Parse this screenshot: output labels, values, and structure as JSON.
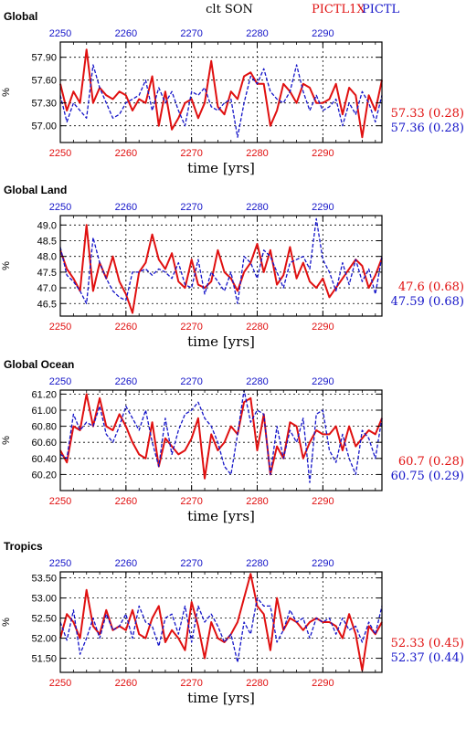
{
  "header": {
    "title": "clt SON",
    "label_exp": "PICTL1X",
    "label_ctl": "PICTL"
  },
  "colors": {
    "exp": "#e01010",
    "ctl": "#1414c8",
    "grid": "#000000",
    "text": "#000000"
  },
  "chart_data": [
    {
      "type": "line",
      "title": "Global",
      "xlabel": "time [yrs]",
      "ylabel": "%",
      "xlim": [
        2250,
        2299
      ],
      "ylim": [
        56.78,
        58.1
      ],
      "xticks": [
        2250,
        2260,
        2270,
        2280,
        2290
      ],
      "xtick_labels": [
        "2250",
        "2260",
        "2270",
        "2280",
        "2290"
      ],
      "yticks": [
        57.0,
        57.3,
        57.6,
        57.9
      ],
      "ytick_labels": [
        "57.00",
        "57.30",
        "57.60",
        "57.90"
      ],
      "grid": true,
      "series": [
        {
          "name": "PICTL1X",
          "mean_label": "57.33 (0.28)",
          "x_start": 2250,
          "values": [
            57.55,
            57.2,
            57.45,
            57.3,
            58.0,
            57.3,
            57.5,
            57.4,
            57.35,
            57.45,
            57.4,
            57.2,
            57.35,
            57.3,
            57.65,
            57.0,
            57.45,
            56.95,
            57.1,
            57.3,
            57.35,
            57.1,
            57.3,
            57.85,
            57.25,
            57.15,
            57.45,
            57.35,
            57.65,
            57.7,
            57.55,
            57.55,
            57.0,
            57.2,
            57.55,
            57.45,
            57.3,
            57.55,
            57.5,
            57.3,
            57.3,
            57.35,
            57.55,
            57.15,
            57.5,
            57.4,
            56.85,
            57.4,
            57.2,
            57.6
          ]
        },
        {
          "name": "PICTL",
          "mean_label": "57.36 (0.28)",
          "x_start": 2250,
          "values": [
            57.4,
            57.05,
            57.3,
            57.2,
            57.1,
            57.8,
            57.5,
            57.3,
            57.1,
            57.15,
            57.3,
            57.35,
            57.4,
            57.6,
            57.2,
            57.5,
            57.3,
            57.45,
            57.2,
            57.0,
            57.45,
            57.4,
            57.5,
            57.25,
            57.2,
            57.3,
            57.35,
            56.85,
            57.3,
            57.65,
            57.55,
            57.75,
            57.45,
            57.35,
            57.3,
            57.45,
            57.8,
            57.45,
            57.2,
            57.4,
            57.2,
            57.25,
            57.35,
            57.0,
            57.3,
            57.15,
            57.45,
            57.3,
            57.05,
            57.4
          ]
        }
      ]
    },
    {
      "type": "line",
      "title": "Global Land",
      "xlabel": "time [yrs]",
      "ylabel": "%",
      "xlim": [
        2250,
        2299
      ],
      "ylim": [
        46.1,
        49.3
      ],
      "xticks": [
        2250,
        2260,
        2270,
        2280,
        2290
      ],
      "xtick_labels": [
        "2250",
        "2260",
        "2270",
        "2280",
        "2290"
      ],
      "yticks": [
        46.5,
        47.0,
        47.5,
        48.0,
        48.5,
        49.0
      ],
      "ytick_labels": [
        "46.5",
        "47.0",
        "47.5",
        "48.0",
        "48.5",
        "49.0"
      ],
      "grid": true,
      "series": [
        {
          "name": "PICTL1X",
          "mean_label": "47.6 (0.68)",
          "x_start": 2250,
          "values": [
            48.2,
            47.6,
            47.3,
            46.9,
            49.0,
            46.9,
            47.8,
            47.3,
            48.0,
            47.2,
            46.8,
            46.2,
            47.5,
            47.8,
            48.7,
            47.9,
            47.6,
            48.1,
            47.2,
            47.0,
            47.9,
            47.1,
            47.0,
            47.2,
            48.2,
            47.5,
            47.3,
            46.9,
            47.5,
            47.8,
            48.4,
            47.5,
            48.2,
            47.1,
            47.4,
            48.3,
            47.3,
            47.8,
            47.2,
            47.0,
            47.3,
            46.7,
            47.0,
            47.3,
            47.6,
            47.9,
            47.7,
            47.0,
            47.4,
            47.95
          ]
        },
        {
          "name": "PICTL",
          "mean_label": "47.59 (0.68)",
          "x_start": 2250,
          "values": [
            48.3,
            47.4,
            47.2,
            46.9,
            46.5,
            48.6,
            47.8,
            47.3,
            46.9,
            46.7,
            46.6,
            47.5,
            47.5,
            47.6,
            47.4,
            47.6,
            47.5,
            47.3,
            47.8,
            47.1,
            47.0,
            47.9,
            46.8,
            47.5,
            47.2,
            46.9,
            47.5,
            46.5,
            48.0,
            47.8,
            47.3,
            48.2,
            48.0,
            47.5,
            47.0,
            47.8,
            47.9,
            48.0,
            47.6,
            49.2,
            47.9,
            47.5,
            46.9,
            47.8,
            47.1,
            47.9,
            47.2,
            47.6,
            46.8,
            48.0
          ]
        }
      ]
    },
    {
      "type": "line",
      "title": "Global Ocean",
      "xlabel": "time [yrs]",
      "ylabel": "%",
      "xlim": [
        2250,
        2299
      ],
      "ylim": [
        60.0,
        61.25
      ],
      "xticks": [
        2250,
        2260,
        2270,
        2280,
        2290
      ],
      "xtick_labels": [
        "2250",
        "2260",
        "2270",
        "2280",
        "2290"
      ],
      "yticks": [
        60.2,
        60.4,
        60.6,
        60.8,
        61.0,
        61.2
      ],
      "ytick_labels": [
        "60.20",
        "60.40",
        "60.60",
        "60.80",
        "61.00",
        "61.20"
      ],
      "grid": true,
      "series": [
        {
          "name": "PICTL1X",
          "mean_label": "60.7 (0.28)",
          "x_start": 2250,
          "values": [
            60.5,
            60.35,
            60.8,
            60.75,
            61.2,
            60.8,
            61.15,
            60.8,
            60.75,
            60.95,
            60.8,
            60.6,
            60.45,
            60.4,
            60.85,
            60.3,
            60.65,
            60.55,
            60.45,
            60.5,
            60.65,
            60.9,
            60.15,
            60.7,
            60.5,
            60.6,
            60.8,
            60.7,
            61.1,
            61.15,
            60.5,
            60.95,
            60.2,
            60.55,
            60.4,
            60.85,
            60.8,
            60.4,
            60.6,
            60.75,
            60.7,
            60.7,
            60.8,
            60.5,
            60.8,
            60.55,
            60.65,
            60.75,
            60.7,
            60.9
          ]
        },
        {
          "name": "PICTL",
          "mean_label": "60.75 (0.29)",
          "x_start": 2250,
          "values": [
            60.45,
            60.4,
            60.95,
            60.75,
            60.85,
            60.8,
            61.05,
            60.7,
            60.6,
            60.8,
            61.05,
            60.9,
            60.75,
            61.0,
            60.6,
            60.3,
            60.9,
            60.45,
            60.75,
            60.95,
            61.0,
            61.1,
            60.9,
            60.8,
            60.6,
            60.3,
            60.2,
            60.7,
            61.25,
            60.85,
            61.0,
            60.95,
            60.2,
            60.8,
            60.4,
            60.75,
            60.6,
            60.9,
            60.1,
            60.95,
            61.0,
            60.5,
            60.35,
            60.7,
            60.4,
            60.2,
            60.75,
            60.65,
            60.4,
            60.9
          ]
        }
      ]
    },
    {
      "type": "line",
      "title": "Tropics",
      "xlabel": "time [yrs]",
      "ylabel": "%",
      "xlim": [
        2250,
        2299
      ],
      "ylim": [
        51.15,
        53.65
      ],
      "xticks": [
        2250,
        2260,
        2270,
        2280,
        2290
      ],
      "xtick_labels": [
        "2250",
        "2260",
        "2270",
        "2280",
        "2290"
      ],
      "yticks": [
        51.5,
        52.0,
        52.5,
        53.0,
        53.5
      ],
      "ytick_labels": [
        "51.50",
        "52.00",
        "52.50",
        "53.00",
        "53.50"
      ],
      "grid": true,
      "series": [
        {
          "name": "PICTL1X",
          "mean_label": "52.33 (0.45)",
          "x_start": 2250,
          "values": [
            52.0,
            52.6,
            52.4,
            52.0,
            53.2,
            52.3,
            52.1,
            52.7,
            52.2,
            52.3,
            52.2,
            52.7,
            52.1,
            52.0,
            52.5,
            52.8,
            51.9,
            52.2,
            52.0,
            51.7,
            52.9,
            52.3,
            51.5,
            52.4,
            52.0,
            51.9,
            52.1,
            52.4,
            53.0,
            53.6,
            52.8,
            52.6,
            51.7,
            53.0,
            52.2,
            52.5,
            52.4,
            52.2,
            52.4,
            52.5,
            52.4,
            52.4,
            52.3,
            52.0,
            52.6,
            52.1,
            51.2,
            52.3,
            52.1,
            52.4
          ]
        },
        {
          "name": "PICTL",
          "mean_label": "52.37 (0.44)",
          "x_start": 2250,
          "values": [
            52.4,
            51.95,
            52.7,
            51.6,
            52.0,
            52.5,
            52.0,
            52.6,
            52.2,
            52.3,
            52.6,
            52.0,
            52.8,
            52.4,
            52.3,
            51.8,
            52.5,
            52.6,
            52.1,
            52.8,
            51.9,
            52.8,
            52.4,
            52.6,
            52.3,
            51.9,
            52.1,
            51.4,
            52.4,
            52.1,
            53.0,
            52.8,
            52.8,
            51.9,
            52.2,
            52.7,
            52.4,
            52.5,
            52.0,
            52.5,
            52.4,
            52.5,
            52.1,
            52.5,
            52.2,
            52.3,
            51.9,
            52.4,
            52.1,
            52.8
          ]
        }
      ]
    }
  ]
}
